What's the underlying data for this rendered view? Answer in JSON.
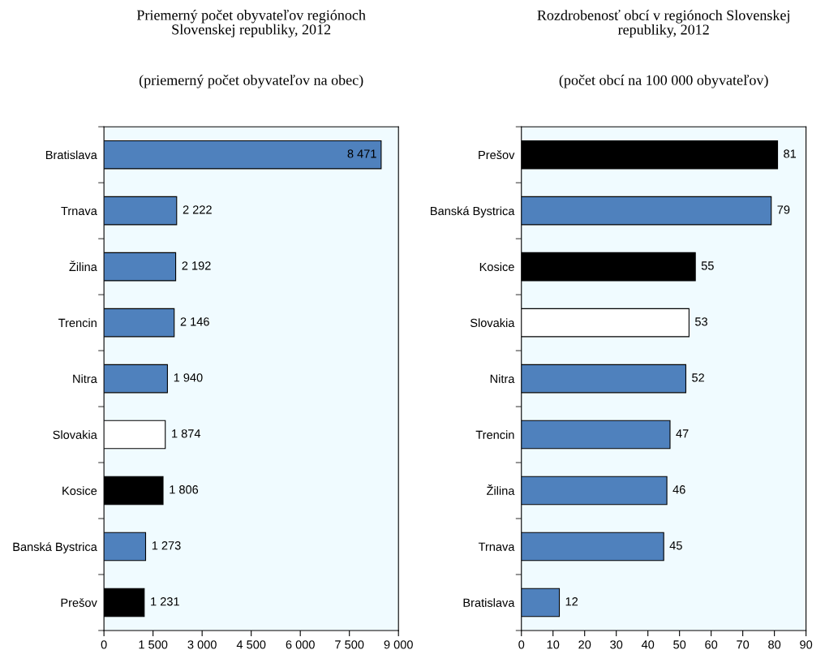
{
  "chart_data": [
    {
      "type": "bar",
      "orientation": "horizontal",
      "title": "Priemerný počet obyvateľov regiónoch\nSlovenskej republiky, 2012",
      "subtitle": "(priemerný počet obyvateľov na obec)",
      "categories": [
        "Bratislava",
        "Trnava",
        "Žilina",
        "Trencin",
        "Nitra",
        "Slovakia",
        "Kosice",
        "Banská Bystrica",
        "Prešov"
      ],
      "values": [
        8471,
        2222,
        2192,
        2146,
        1940,
        1874,
        1806,
        1273,
        1231
      ],
      "colors": [
        "#4f81bd",
        "#4f81bd",
        "#4f81bd",
        "#4f81bd",
        "#4f81bd",
        "#ffffff",
        "#000000",
        "#4f81bd",
        "#000000"
      ],
      "value_labels": [
        "8 471",
        "2 222",
        "2 192",
        "2 146",
        "1 940",
        "1 874",
        "1 806",
        "1 273",
        "1 231"
      ],
      "xlim": [
        0,
        9000
      ],
      "xticks": [
        0,
        {
          "value": 1500,
          "label": "1 500"
        },
        {
          "value": 3000,
          "label": "3 000"
        },
        {
          "value": 4500,
          "label": "4 500"
        },
        {
          "value": 6000,
          "label": "6 000"
        },
        {
          "value": 7500,
          "label": "7 500"
        },
        {
          "value": 9000,
          "label": "9 000"
        }
      ],
      "grid": false,
      "legend": false
    },
    {
      "type": "bar",
      "orientation": "horizontal",
      "title": "Rozdrobenosť obcí v regiónoch Slovenskej\nrepubliky, 2012",
      "subtitle": "(počet obcí na 100 000 obyvateľov)",
      "categories": [
        "Prešov",
        "Banská Bystrica",
        "Kosice",
        "Slovakia",
        "Nitra",
        "Trencin",
        "Žilina",
        "Trnava",
        "Bratislava"
      ],
      "values": [
        81,
        79,
        55,
        53,
        52,
        47,
        46,
        45,
        12
      ],
      "colors": [
        "#000000",
        "#4f81bd",
        "#000000",
        "#ffffff",
        "#4f81bd",
        "#4f81bd",
        "#4f81bd",
        "#4f81bd",
        "#4f81bd"
      ],
      "data_labels": true,
      "xlim": [
        0,
        90
      ],
      "xticks": [
        0,
        10,
        20,
        30,
        40,
        50,
        60,
        70,
        80,
        90
      ],
      "grid": false,
      "legend": false
    }
  ]
}
